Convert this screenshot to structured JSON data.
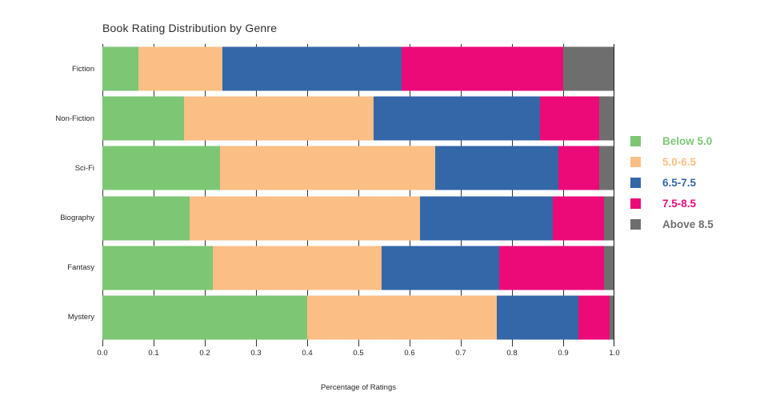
{
  "title": "Book Rating Distribution by Genre",
  "x_axis": {
    "label": "Percentage of Ratings",
    "tick_labels": [
      "0.0",
      "0.1",
      "0.2",
      "0.3",
      "0.4",
      "0.5",
      "0.6",
      "0.7",
      "0.8",
      "0.9",
      "1.0"
    ],
    "min": 0,
    "max": 1
  },
  "legend": {
    "position": "right",
    "items": [
      {
        "label": "Below 5.0",
        "color": "#7CC674"
      },
      {
        "label": "5.0-6.5",
        "color": "#FBBE85"
      },
      {
        "label": "6.5-7.5",
        "color": "#3467A8"
      },
      {
        "label": "7.5-8.5",
        "color": "#EB0A77"
      },
      {
        "label": "Above 8.5",
        "color": "#6E6E6E"
      }
    ]
  },
  "chart_data": {
    "type": "bar",
    "orientation": "horizontal",
    "stacked": true,
    "title": "Book Rating Distribution by Genre",
    "xlabel": "Percentage of Ratings",
    "ylabel": "",
    "xlim": [
      0,
      1
    ],
    "xticks": [
      0.0,
      0.1,
      0.2,
      0.3,
      0.4,
      0.5,
      0.6,
      0.7,
      0.8,
      0.9,
      1.0
    ],
    "grid": true,
    "legend_position": "right",
    "categories": [
      "Fiction",
      "Non-Fiction",
      "Sci-Fi",
      "Biography",
      "Fantasy",
      "Mystery"
    ],
    "series": [
      {
        "name": "Below 5.0",
        "color": "#7CC674",
        "values": [
          0.07,
          0.16,
          0.23,
          0.17,
          0.215,
          0.4
        ]
      },
      {
        "name": "5.0-6.5",
        "color": "#FBBE85",
        "values": [
          0.165,
          0.37,
          0.42,
          0.45,
          0.33,
          0.37
        ]
      },
      {
        "name": "6.5-7.5",
        "color": "#3467A8",
        "values": [
          0.35,
          0.325,
          0.24,
          0.26,
          0.23,
          0.16
        ]
      },
      {
        "name": "7.5-8.5",
        "color": "#EB0A77",
        "values": [
          0.315,
          0.115,
          0.08,
          0.1,
          0.205,
          0.06
        ]
      },
      {
        "name": "Above 8.5",
        "color": "#6E6E6E",
        "values": [
          0.1,
          0.03,
          0.03,
          0.02,
          0.02,
          0.01
        ]
      }
    ]
  }
}
